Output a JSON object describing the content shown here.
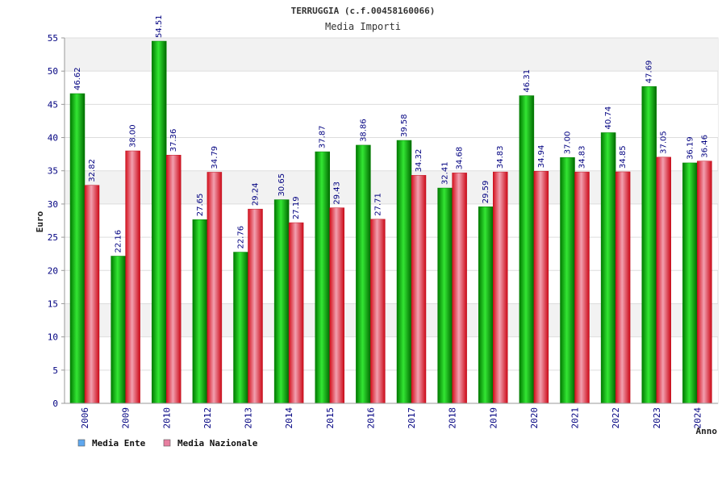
{
  "chart_data": {
    "type": "bar",
    "title": "TERRUGGIA (c.f.00458160066)",
    "subtitle": "Media Importi",
    "ylabel": "Euro",
    "xlabel": "Anno",
    "ylim": [
      0,
      55
    ],
    "yticks": [
      0,
      5,
      10,
      15,
      20,
      25,
      30,
      35,
      40,
      45,
      50,
      55
    ],
    "grid": true,
    "legend_position": "bottom-left",
    "categories": [
      "2006",
      "2009",
      "2010",
      "2012",
      "2013",
      "2014",
      "2015",
      "2016",
      "2017",
      "2018",
      "2019",
      "2020",
      "2021",
      "2022",
      "2023",
      "2024"
    ],
    "series": [
      {
        "name": "Media Ente",
        "color": "#00c000",
        "legend_color": "#5fa8ef",
        "values": [
          46.62,
          22.16,
          54.51,
          27.65,
          22.76,
          30.65,
          37.87,
          38.86,
          39.58,
          32.41,
          29.59,
          46.31,
          37.0,
          40.74,
          47.69,
          36.19
        ],
        "labels": [
          "46.62",
          "22.16",
          "54.51",
          "27.65",
          "22.76",
          "30.65",
          "37.87",
          "38.86",
          "39.58",
          "32.41",
          "29.59",
          "46.31",
          "37.00",
          "40.74",
          "47.69",
          "36.19"
        ]
      },
      {
        "name": "Media Nazionale",
        "color": "#e8202c",
        "legend_color": "#e87fa0",
        "values": [
          32.82,
          38.0,
          37.36,
          34.79,
          29.24,
          27.19,
          29.43,
          27.71,
          34.32,
          34.68,
          34.83,
          34.94,
          34.83,
          34.85,
          37.05,
          36.46
        ],
        "labels": [
          "32.82",
          "38.00",
          "37.36",
          "34.79",
          "29.24",
          "27.19",
          "29.43",
          "27.71",
          "34.32",
          "34.68",
          "34.83",
          "34.94",
          "34.83",
          "34.85",
          "37.05",
          "36.46"
        ]
      }
    ]
  }
}
